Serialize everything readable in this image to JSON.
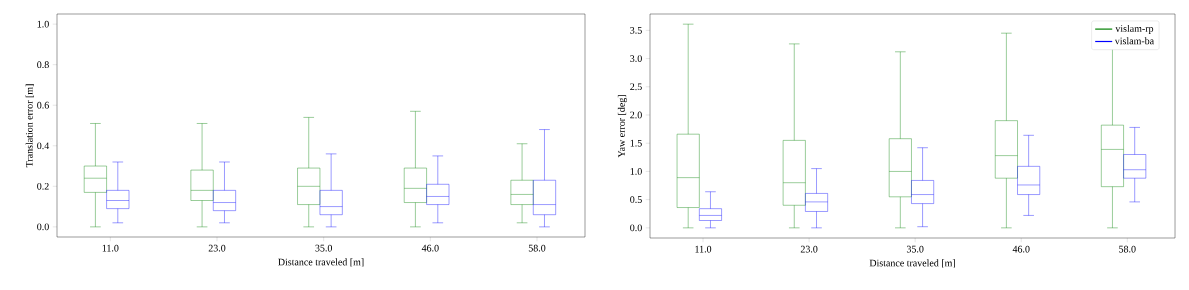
{
  "chart_data": [
    {
      "type": "box",
      "xlabel": "Distance traveled [m]",
      "ylabel": "Translation error [m]",
      "categories": [
        "11.0",
        "23.0",
        "35.0",
        "46.0",
        "58.0"
      ],
      "ylim": [
        -0.05,
        1.05
      ],
      "yticks": [
        {
          "value": 0,
          "label": "0.0"
        },
        {
          "value": 0.2,
          "label": "0.2"
        },
        {
          "value": 0.4,
          "label": "0.4"
        },
        {
          "value": 0.6,
          "label": "0.6"
        },
        {
          "value": 0.8,
          "label": "0.8"
        },
        {
          "value": 1.0,
          "label": "1.0"
        }
      ],
      "series": [
        {
          "color": "#008000",
          "boxes": [
            {
              "low": 0.0,
              "q1": 0.17,
              "median": 0.24,
              "q3": 0.3,
              "high": 0.51
            },
            {
              "low": 0.0,
              "q1": 0.13,
              "median": 0.18,
              "q3": 0.28,
              "high": 0.51
            },
            {
              "low": 0.0,
              "q1": 0.11,
              "median": 0.2,
              "q3": 0.29,
              "high": 0.54
            },
            {
              "low": 0.0,
              "q1": 0.12,
              "median": 0.19,
              "q3": 0.29,
              "high": 0.57
            },
            {
              "low": 0.02,
              "q1": 0.11,
              "median": 0.16,
              "q3": 0.23,
              "high": 0.41
            }
          ]
        },
        {
          "color": "#0000ff",
          "boxes": [
            {
              "low": 0.02,
              "q1": 0.09,
              "median": 0.13,
              "q3": 0.18,
              "high": 0.32
            },
            {
              "low": 0.02,
              "q1": 0.08,
              "median": 0.12,
              "q3": 0.18,
              "high": 0.32
            },
            {
              "low": 0.0,
              "q1": 0.06,
              "median": 0.1,
              "q3": 0.18,
              "high": 0.36
            },
            {
              "low": 0.02,
              "q1": 0.11,
              "median": 0.15,
              "q3": 0.21,
              "high": 0.35
            },
            {
              "low": 0.0,
              "q1": 0.06,
              "median": 0.11,
              "q3": 0.23,
              "high": 0.48
            }
          ]
        }
      ]
    },
    {
      "type": "box",
      "xlabel": "Distance traveled [m]",
      "ylabel": "Yaw error [deg]",
      "categories": [
        "11.0",
        "23.0",
        "35.0",
        "46.0",
        "58.0"
      ],
      "ylim": [
        -0.18,
        3.79
      ],
      "legend": "top right",
      "yticks": [
        {
          "value": 0,
          "label": "0.0"
        },
        {
          "value": 0.5,
          "label": "0.5"
        },
        {
          "value": 1.0,
          "label": "1.0"
        },
        {
          "value": 1.5,
          "label": "1.5"
        },
        {
          "value": 2.0,
          "label": "2.0"
        },
        {
          "value": 2.5,
          "label": "2.5"
        },
        {
          "value": 3.0,
          "label": "3.0"
        },
        {
          "value": 3.5,
          "label": "3.5"
        }
      ],
      "series": [
        {
          "name": "vislam-rp",
          "color": "#008000",
          "boxes": [
            {
              "low": 0.0,
              "q1": 0.36,
              "median": 0.89,
              "q3": 1.66,
              "high": 3.61
            },
            {
              "low": 0.0,
              "q1": 0.4,
              "median": 0.8,
              "q3": 1.55,
              "high": 3.26
            },
            {
              "low": 0.0,
              "q1": 0.55,
              "median": 1.0,
              "q3": 1.58,
              "high": 3.12
            },
            {
              "low": 0.0,
              "q1": 0.88,
              "median": 1.28,
              "q3": 1.9,
              "high": 3.45
            },
            {
              "low": 0.0,
              "q1": 0.73,
              "median": 1.39,
              "q3": 1.82,
              "high": 3.45
            }
          ]
        },
        {
          "name": "vislam-ba",
          "color": "#0000ff",
          "boxes": [
            {
              "low": 0.0,
              "q1": 0.13,
              "median": 0.22,
              "q3": 0.34,
              "high": 0.64
            },
            {
              "low": 0.0,
              "q1": 0.29,
              "median": 0.46,
              "q3": 0.61,
              "high": 1.05
            },
            {
              "low": 0.02,
              "q1": 0.43,
              "median": 0.59,
              "q3": 0.84,
              "high": 1.42
            },
            {
              "low": 0.22,
              "q1": 0.59,
              "median": 0.76,
              "q3": 1.09,
              "high": 1.64
            },
            {
              "low": 0.46,
              "q1": 0.88,
              "median": 1.03,
              "q3": 1.3,
              "high": 1.78
            }
          ]
        }
      ]
    }
  ]
}
